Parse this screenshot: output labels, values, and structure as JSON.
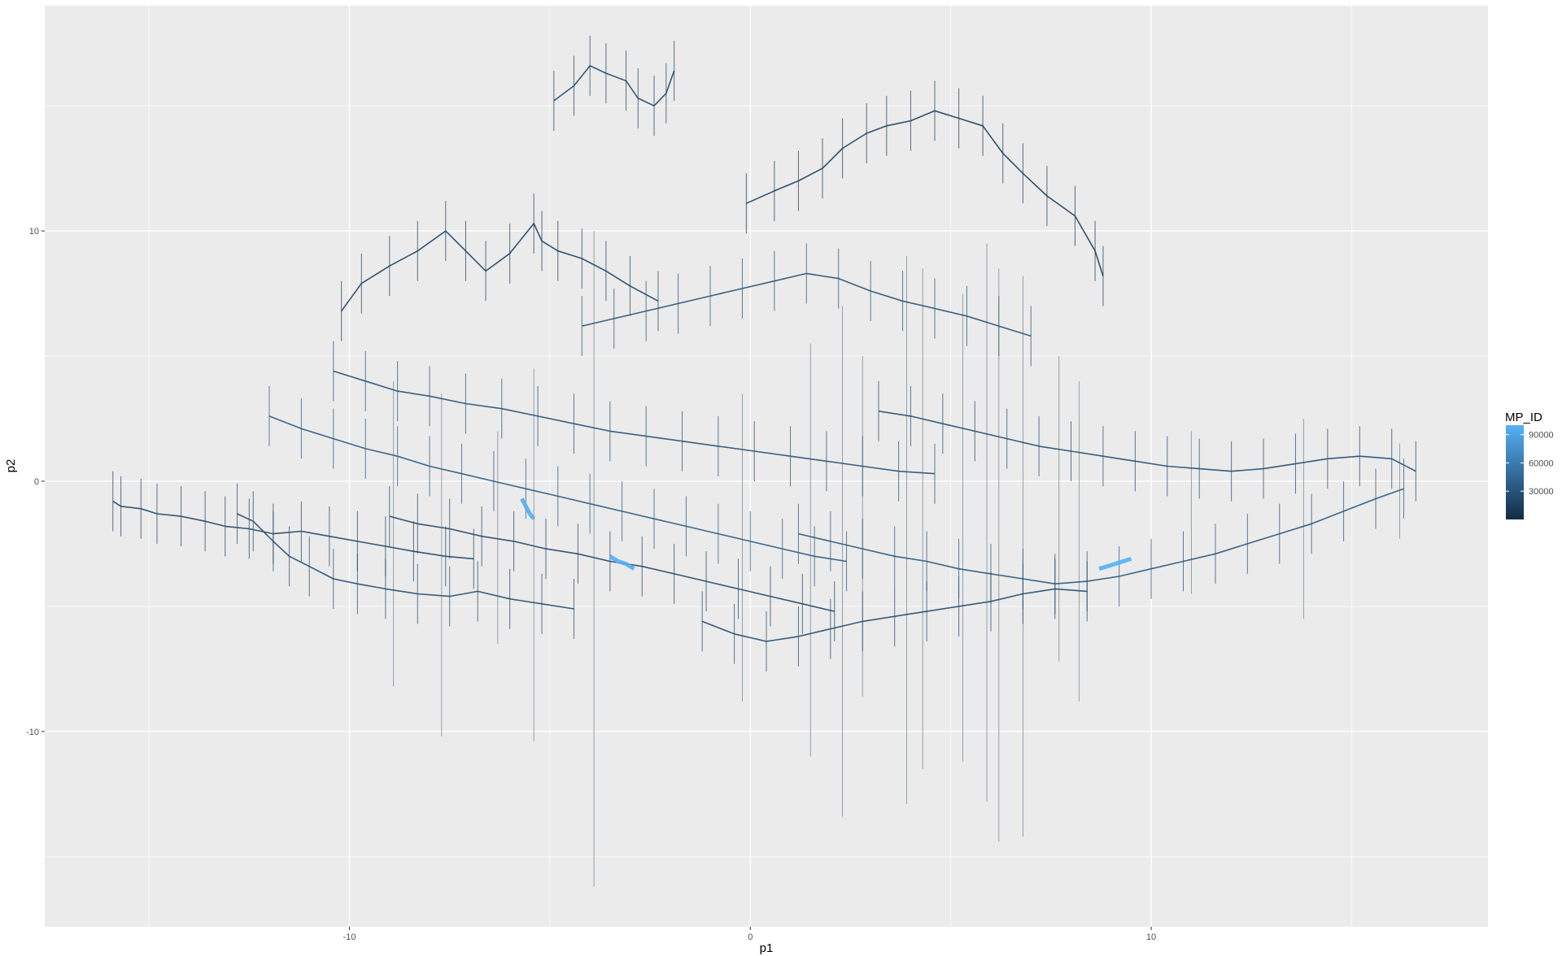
{
  "chart_data": {
    "type": "line",
    "xlabel": "p1",
    "ylabel": "p2",
    "xlim": [
      -17.6,
      18.4
    ],
    "ylim": [
      -17.8,
      19.0
    ],
    "x_ticks": [
      {
        "value": -10,
        "label": "-10"
      },
      {
        "value": 0,
        "label": "0"
      },
      {
        "value": 10,
        "label": "10"
      }
    ],
    "x_minor": [
      -15,
      -5,
      5,
      15
    ],
    "y_ticks": [
      {
        "value": -10,
        "label": "-10"
      },
      {
        "value": 0,
        "label": "0"
      },
      {
        "value": 10,
        "label": "10"
      }
    ],
    "y_minor": [
      -15,
      -5,
      5,
      15
    ],
    "grid": true,
    "panel_background": "#ebebeb",
    "grid_color": "#ffffff",
    "color_scale": {
      "variable": "MP_ID",
      "low_color": "#132b43",
      "high_color": "#56b1f7",
      "range": [
        1,
        100000
      ],
      "breaks": [
        30000,
        60000,
        90000
      ],
      "break_labels": [
        "30000",
        "60000",
        "90000"
      ]
    },
    "legend_position": "right",
    "series": [
      {
        "mp_id": 20000,
        "path": [
          [
            -15.9,
            -0.8
          ],
          [
            -15.7,
            -1.0
          ],
          [
            -15.2,
            -1.1
          ],
          [
            -14.8,
            -1.3
          ],
          [
            -14.2,
            -1.4
          ],
          [
            -13.6,
            -1.6
          ],
          [
            -13.1,
            -1.8
          ],
          [
            -12.5,
            -1.9
          ],
          [
            -11.9,
            -2.1
          ],
          [
            -11.2,
            -2.0
          ],
          [
            -10.5,
            -2.2
          ],
          [
            -9.8,
            -2.4
          ],
          [
            -9.1,
            -2.6
          ],
          [
            -8.4,
            -2.8
          ],
          [
            -7.6,
            -3.0
          ],
          [
            -6.9,
            -3.1
          ]
        ]
      },
      {
        "mp_id": 25000,
        "path": [
          [
            -12.8,
            -1.3
          ],
          [
            -12.4,
            -1.6
          ],
          [
            -11.9,
            -2.4
          ],
          [
            -11.5,
            -3.0
          ],
          [
            -11.0,
            -3.4
          ],
          [
            -10.4,
            -3.9
          ],
          [
            -9.8,
            -4.1
          ],
          [
            -9.1,
            -4.3
          ],
          [
            -8.3,
            -4.5
          ],
          [
            -7.5,
            -4.6
          ],
          [
            -6.8,
            -4.4
          ],
          [
            -6.0,
            -4.7
          ],
          [
            -5.2,
            -4.9
          ],
          [
            -4.4,
            -5.1
          ]
        ]
      },
      {
        "mp_id": 18000,
        "path": [
          [
            -10.2,
            6.8
          ],
          [
            -9.7,
            7.9
          ],
          [
            -9.0,
            8.6
          ],
          [
            -8.3,
            9.2
          ],
          [
            -7.6,
            10.0
          ],
          [
            -7.1,
            9.2
          ],
          [
            -6.6,
            8.4
          ],
          [
            -6.0,
            9.1
          ],
          [
            -5.4,
            10.3
          ],
          [
            -5.2,
            9.6
          ],
          [
            -4.8,
            9.2
          ],
          [
            -4.2,
            8.9
          ],
          [
            -3.6,
            8.4
          ],
          [
            -3.0,
            7.8
          ],
          [
            -2.3,
            7.2
          ]
        ]
      },
      {
        "mp_id": 22000,
        "path": [
          [
            -4.9,
            15.2
          ],
          [
            -4.4,
            15.8
          ],
          [
            -4.0,
            16.6
          ],
          [
            -3.6,
            16.3
          ],
          [
            -3.1,
            16.0
          ],
          [
            -2.8,
            15.3
          ],
          [
            -2.4,
            15.0
          ],
          [
            -2.1,
            15.5
          ],
          [
            -1.9,
            16.4
          ]
        ]
      },
      {
        "mp_id": 15000,
        "path": [
          [
            -0.1,
            11.1
          ],
          [
            0.6,
            11.6
          ],
          [
            1.2,
            12.0
          ],
          [
            1.8,
            12.5
          ],
          [
            2.3,
            13.3
          ],
          [
            2.9,
            13.9
          ],
          [
            3.4,
            14.2
          ],
          [
            4.0,
            14.4
          ],
          [
            4.6,
            14.8
          ],
          [
            5.2,
            14.5
          ],
          [
            5.8,
            14.2
          ],
          [
            6.3,
            13.1
          ],
          [
            6.8,
            12.3
          ],
          [
            7.4,
            11.4
          ],
          [
            8.1,
            10.6
          ],
          [
            8.6,
            9.2
          ],
          [
            8.8,
            8.2
          ]
        ]
      },
      {
        "mp_id": 30000,
        "path": [
          [
            -4.2,
            6.2
          ],
          [
            -3.4,
            6.5
          ],
          [
            -2.6,
            6.8
          ],
          [
            -1.8,
            7.1
          ],
          [
            -1.0,
            7.4
          ],
          [
            -0.2,
            7.7
          ],
          [
            0.6,
            8.0
          ],
          [
            1.4,
            8.3
          ],
          [
            2.2,
            8.1
          ],
          [
            3.0,
            7.6
          ],
          [
            3.8,
            7.2
          ],
          [
            4.6,
            6.9
          ],
          [
            5.4,
            6.6
          ],
          [
            6.2,
            6.2
          ],
          [
            7.0,
            5.8
          ]
        ]
      },
      {
        "mp_id": 28000,
        "path": [
          [
            -10.4,
            4.4
          ],
          [
            -9.6,
            4.0
          ],
          [
            -8.8,
            3.6
          ],
          [
            -8.0,
            3.4
          ],
          [
            -7.1,
            3.1
          ],
          [
            -6.2,
            2.9
          ],
          [
            -5.3,
            2.6
          ],
          [
            -4.4,
            2.3
          ],
          [
            -3.5,
            2.0
          ],
          [
            -2.6,
            1.8
          ],
          [
            -1.7,
            1.6
          ],
          [
            -0.8,
            1.4
          ],
          [
            0.1,
            1.2
          ],
          [
            1.0,
            1.0
          ],
          [
            1.9,
            0.8
          ],
          [
            2.8,
            0.6
          ],
          [
            3.7,
            0.4
          ],
          [
            4.6,
            0.3
          ]
        ]
      },
      {
        "mp_id": 35000,
        "path": [
          [
            -12.0,
            2.6
          ],
          [
            -11.2,
            2.1
          ],
          [
            -10.4,
            1.7
          ],
          [
            -9.6,
            1.3
          ],
          [
            -8.8,
            1.0
          ],
          [
            -8.0,
            0.6
          ],
          [
            -7.2,
            0.3
          ],
          [
            -6.4,
            0.0
          ],
          [
            -5.6,
            -0.3
          ],
          [
            -4.8,
            -0.6
          ],
          [
            -4.0,
            -0.9
          ],
          [
            -3.2,
            -1.2
          ],
          [
            -2.4,
            -1.5
          ],
          [
            -1.6,
            -1.8
          ],
          [
            -0.8,
            -2.1
          ],
          [
            0.0,
            -2.4
          ],
          [
            0.8,
            -2.7
          ],
          [
            1.6,
            -3.0
          ],
          [
            2.4,
            -3.2
          ]
        ]
      },
      {
        "mp_id": 32000,
        "path": [
          [
            1.2,
            -2.1
          ],
          [
            2.0,
            -2.4
          ],
          [
            2.8,
            -2.7
          ],
          [
            3.6,
            -3.0
          ],
          [
            4.4,
            -3.2
          ],
          [
            5.2,
            -3.5
          ],
          [
            6.0,
            -3.7
          ],
          [
            6.8,
            -3.9
          ],
          [
            7.6,
            -4.1
          ],
          [
            8.4,
            -4.0
          ],
          [
            9.2,
            -3.8
          ],
          [
            10.0,
            -3.5
          ],
          [
            10.8,
            -3.2
          ],
          [
            11.6,
            -2.9
          ],
          [
            12.4,
            -2.5
          ],
          [
            13.2,
            -2.1
          ],
          [
            14.0,
            -1.7
          ],
          [
            14.8,
            -1.2
          ],
          [
            15.6,
            -0.7
          ],
          [
            16.3,
            -0.3
          ]
        ]
      },
      {
        "mp_id": 26000,
        "path": [
          [
            3.2,
            2.8
          ],
          [
            4.0,
            2.6
          ],
          [
            4.8,
            2.3
          ],
          [
            5.6,
            2.0
          ],
          [
            6.4,
            1.7
          ],
          [
            7.2,
            1.4
          ],
          [
            8.0,
            1.2
          ],
          [
            8.8,
            1.0
          ],
          [
            9.6,
            0.8
          ],
          [
            10.4,
            0.6
          ],
          [
            11.2,
            0.5
          ],
          [
            12.0,
            0.4
          ],
          [
            12.8,
            0.5
          ],
          [
            13.6,
            0.7
          ],
          [
            14.4,
            0.9
          ],
          [
            15.2,
            1.0
          ],
          [
            16.0,
            0.9
          ],
          [
            16.6,
            0.4
          ]
        ]
      },
      {
        "mp_id": 24000,
        "path": [
          [
            -1.2,
            -5.6
          ],
          [
            -0.4,
            -6.1
          ],
          [
            0.4,
            -6.4
          ],
          [
            1.2,
            -6.2
          ],
          [
            2.0,
            -5.9
          ],
          [
            2.8,
            -5.6
          ],
          [
            3.6,
            -5.4
          ],
          [
            4.4,
            -5.2
          ],
          [
            5.2,
            -5.0
          ],
          [
            6.0,
            -4.8
          ],
          [
            6.8,
            -4.5
          ],
          [
            7.6,
            -4.3
          ],
          [
            8.4,
            -4.4
          ]
        ]
      },
      {
        "mp_id": 21000,
        "path": [
          [
            -9.0,
            -1.4
          ],
          [
            -8.3,
            -1.7
          ],
          [
            -7.5,
            -1.9
          ],
          [
            -6.7,
            -2.2
          ],
          [
            -5.9,
            -2.4
          ],
          [
            -5.1,
            -2.7
          ],
          [
            -4.3,
            -2.9
          ],
          [
            -3.5,
            -3.2
          ],
          [
            -2.7,
            -3.4
          ],
          [
            -1.9,
            -3.7
          ],
          [
            -1.1,
            -4.0
          ],
          [
            -0.3,
            -4.3
          ],
          [
            0.5,
            -4.6
          ],
          [
            1.3,
            -4.9
          ],
          [
            2.1,
            -5.2
          ]
        ]
      },
      {
        "mp_id": 97000,
        "path": [
          [
            -5.7,
            -0.7
          ],
          [
            -5.6,
            -1.0
          ],
          [
            -5.5,
            -1.3
          ],
          [
            -5.4,
            -1.5
          ]
        ]
      },
      {
        "mp_id": 98000,
        "path": [
          [
            -3.5,
            -3.0
          ],
          [
            -3.3,
            -3.2
          ],
          [
            -3.1,
            -3.3
          ],
          [
            -2.9,
            -3.5
          ]
        ]
      },
      {
        "mp_id": 99000,
        "path": [
          [
            8.7,
            -3.5
          ],
          [
            8.9,
            -3.4
          ],
          [
            9.1,
            -3.3
          ],
          [
            9.3,
            -3.2
          ],
          [
            9.5,
            -3.1
          ]
        ]
      }
    ],
    "spike_lines": [
      {
        "x": -3.9,
        "y_from": 10.0,
        "y_to": -16.2
      },
      {
        "x": -7.7,
        "y_from": 3.5,
        "y_to": -10.2
      },
      {
        "x": -8.9,
        "y_from": 4.0,
        "y_to": -8.2
      },
      {
        "x": -5.4,
        "y_from": 4.5,
        "y_to": -10.4
      },
      {
        "x": 6.2,
        "y_from": 8.5,
        "y_to": -14.4
      },
      {
        "x": 6.8,
        "y_from": 8.2,
        "y_to": -14.2
      },
      {
        "x": 5.9,
        "y_from": 9.5,
        "y_to": -12.8
      },
      {
        "x": 3.9,
        "y_from": 9.0,
        "y_to": -12.9
      },
      {
        "x": 2.3,
        "y_from": 7.0,
        "y_to": -13.4
      },
      {
        "x": 1.5,
        "y_from": 5.5,
        "y_to": -11.0
      },
      {
        "x": 4.3,
        "y_from": 8.5,
        "y_to": -11.5
      },
      {
        "x": 5.3,
        "y_from": 7.5,
        "y_to": -11.2
      },
      {
        "x": 8.2,
        "y_from": 4.0,
        "y_to": -8.8
      },
      {
        "x": 7.7,
        "y_from": 5.0,
        "y_to": -7.2
      },
      {
        "x": -0.2,
        "y_from": 3.5,
        "y_to": -8.8
      },
      {
        "x": 2.8,
        "y_from": 5.0,
        "y_to": -8.6
      },
      {
        "x": -6.3,
        "y_from": 2.0,
        "y_to": -6.5
      },
      {
        "x": 13.8,
        "y_from": 2.5,
        "y_to": -5.5
      },
      {
        "x": 16.2,
        "y_from": 1.5,
        "y_to": -2.3
      },
      {
        "x": 11.0,
        "y_from": 2.0,
        "y_to": -4.5
      }
    ]
  }
}
